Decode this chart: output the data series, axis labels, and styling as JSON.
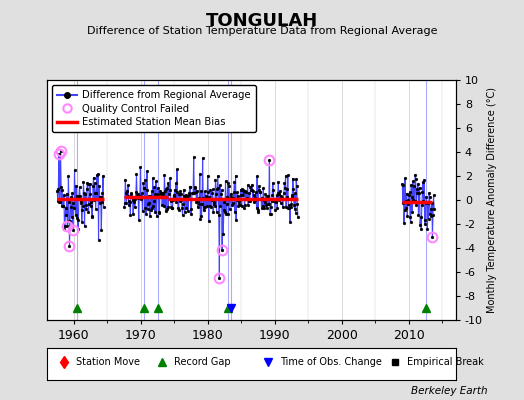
{
  "title": "TONGULAH",
  "subtitle": "Difference of Station Temperature Data from Regional Average",
  "ylabel_right": "Monthly Temperature Anomaly Difference (°C)",
  "ylim": [
    -10,
    10
  ],
  "xlim": [
    1956,
    2017
  ],
  "xticks": [
    1960,
    1970,
    1980,
    1990,
    2000,
    2010
  ],
  "yticks_right": [
    -10,
    -8,
    -6,
    -4,
    -2,
    0,
    2,
    4,
    6,
    8,
    10
  ],
  "bg_color": "#e0e0e0",
  "plot_bg_color": "#ffffff",
  "grid_color": "#cccccc",
  "line_color": "#4444ff",
  "bias_color": "#ff0000",
  "qc_color": "#ff88ff",
  "berkeley_earth_text": "Berkeley Earth",
  "record_gap_years": [
    1960.5,
    1970.5,
    1972.5,
    1983.0,
    2012.5
  ],
  "time_obs_years": [
    1983.5
  ],
  "segments": [
    {
      "xstart": 1957.5,
      "xend": 1964.5,
      "bias": 0.1
    },
    {
      "xstart": 1967.5,
      "xend": 1974.0,
      "bias": 0.25
    },
    {
      "xstart": 1974.0,
      "xend": 1985.5,
      "bias": 0.1
    },
    {
      "xstart": 1985.5,
      "xend": 1993.5,
      "bias": 0.1
    },
    {
      "xstart": 2009.0,
      "xend": 2013.5,
      "bias": -0.15
    }
  ],
  "marker_years": {
    "record_gap": [
      1960.5,
      1970.5,
      1972.5,
      1983.0,
      2012.5
    ],
    "time_obs": [
      1983.5
    ],
    "station_move": [],
    "empirical_break": []
  },
  "seed": 42
}
